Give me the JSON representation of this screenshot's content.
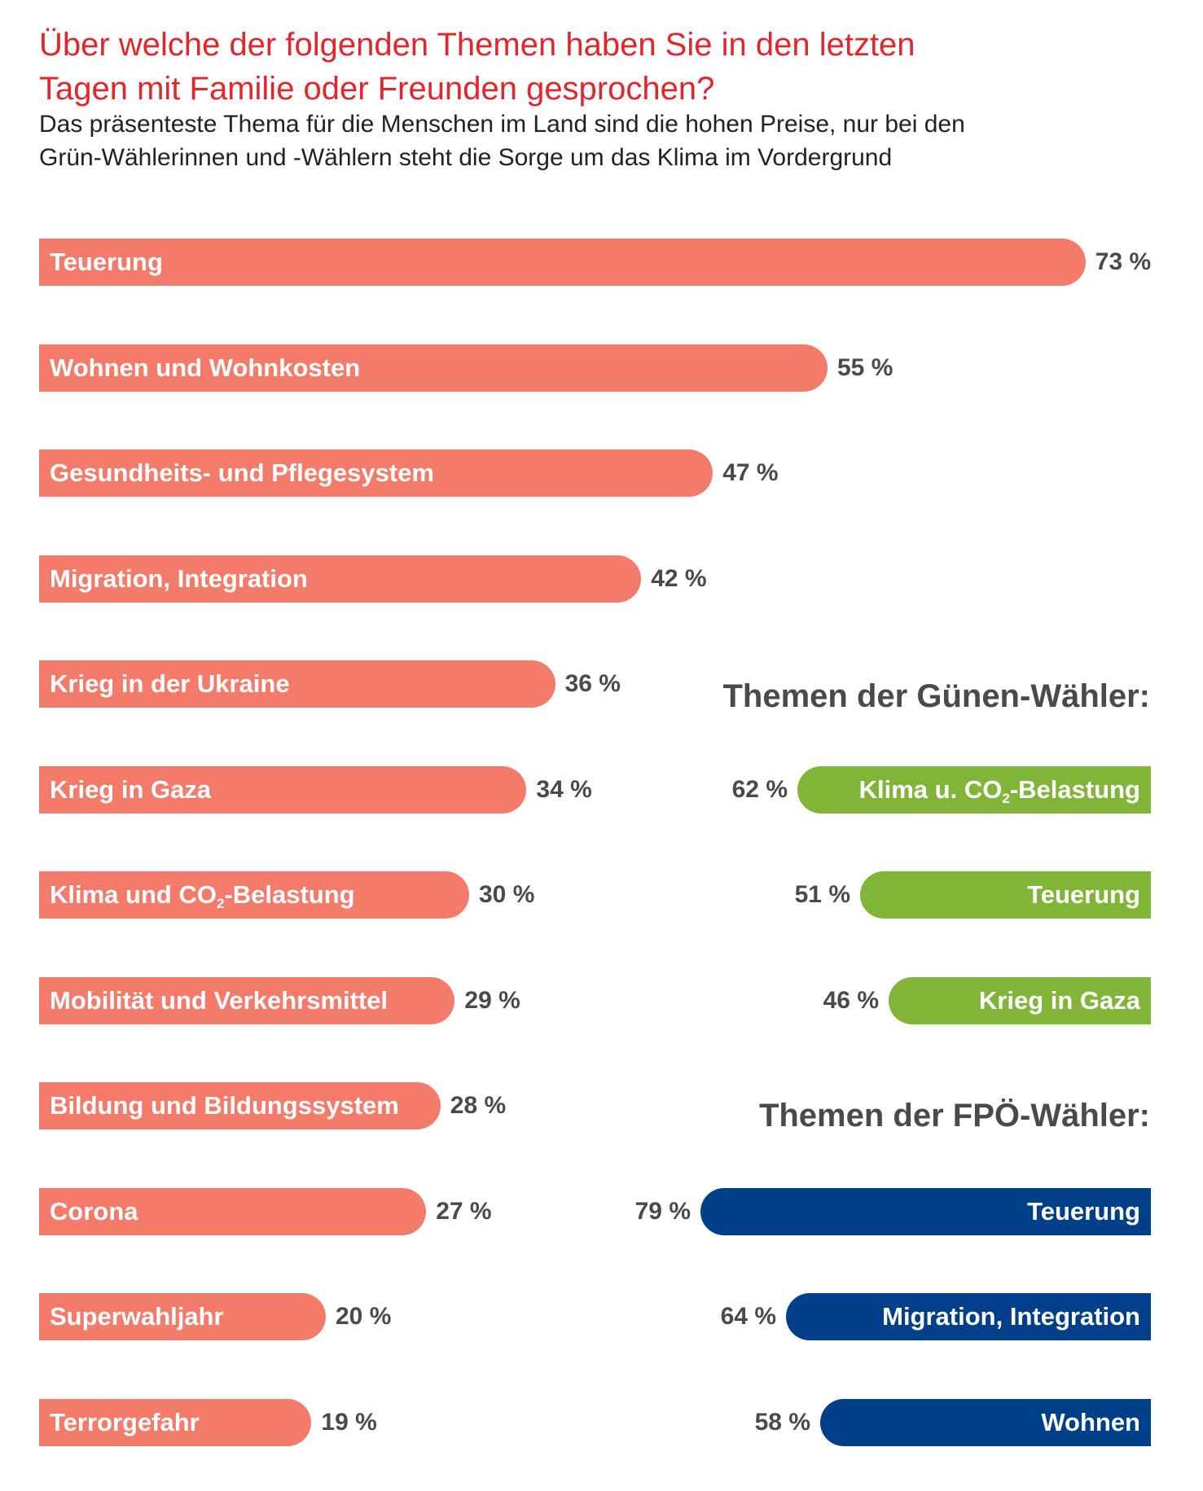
{
  "title": [
    "Über welche der folgenden Themen haben Sie in den letzten",
    "Tagen mit Familie oder Freunden gesprochen?"
  ],
  "subtitle": [
    "Das präsenteste Thema für die Menschen im Land sind die hohen Preise, nur bei den",
    "Grün-Wählerinnen und -Wählern steht die Sorge um das Klima im Vordergrund"
  ],
  "colors": {
    "title": "#e3262b",
    "main": "#f47a69",
    "green": "#80b537",
    "fpo": "#003f8a",
    "value": "#4a4a4a"
  },
  "chart_data": [
    {
      "type": "bar",
      "orientation": "horizontal",
      "id": "main",
      "unit": "%",
      "categories": [
        "Teuerung",
        "Wohnen und Wohnkosten",
        "Gesundheits- und Pflegesystem",
        "Migration, Integration",
        "Krieg in der Ukraine",
        "Krieg in Gaza",
        "Klima und CO2-Belastung",
        "Mobilität und Verkehrsmittel",
        "Bildung und Bildungssystem",
        "Corona",
        "Superwahljahr",
        "Terrorgefahr"
      ],
      "values": [
        73,
        55,
        47,
        42,
        36,
        34,
        30,
        29,
        28,
        27,
        20,
        19
      ],
      "value_labels": [
        "73 %",
        "55 %",
        "47 %",
        "42 %",
        "36 %",
        "34 %",
        "30 %",
        "29 %",
        "28 %",
        "27 %",
        "20 %",
        "19 %"
      ]
    },
    {
      "type": "bar",
      "orientation": "horizontal",
      "id": "green",
      "title": "Themen der Günen-Wähler:",
      "unit": "%",
      "categories": [
        "Klima u. CO2-Belastung",
        "Teuerung",
        "Krieg in Gaza"
      ],
      "values": [
        62,
        51,
        46
      ],
      "value_labels": [
        "62 %",
        "51 %",
        "46 %"
      ]
    },
    {
      "type": "bar",
      "orientation": "horizontal",
      "id": "fpo",
      "title": "Themen der FPÖ-Wähler:",
      "unit": "%",
      "categories": [
        "Teuerung",
        "Migration, Integration",
        "Wohnen"
      ],
      "values": [
        79,
        64,
        58
      ],
      "value_labels": [
        "79 %",
        "64 %",
        "58 %"
      ]
    }
  ]
}
